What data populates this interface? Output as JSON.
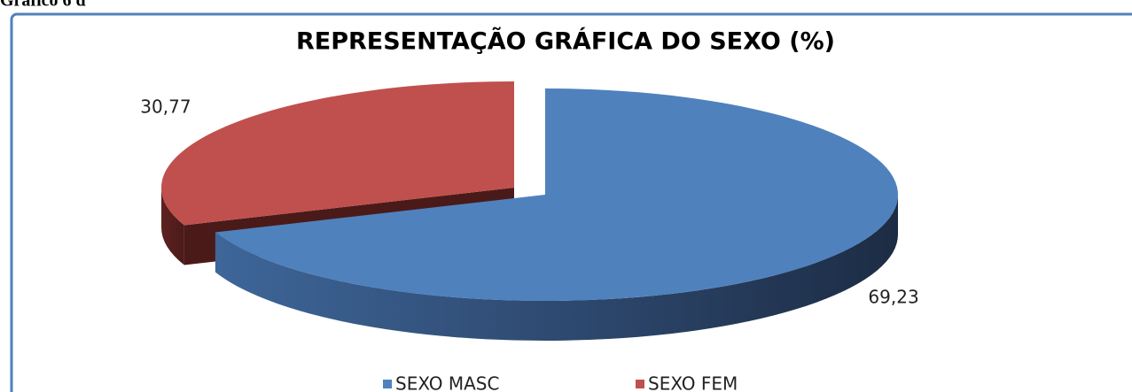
{
  "caption": "Gráfico 6 d",
  "chart_data": {
    "type": "pie",
    "title": "REPRESENTAÇÃO GRÁFICA DO SEXO (%)",
    "categories": [
      "SEXO MASC",
      "SEXO FEM"
    ],
    "values": [
      69.23,
      30.77
    ],
    "value_labels": [
      "69,23",
      "30,77"
    ],
    "colors": [
      "#4f81bd",
      "#c0504d"
    ],
    "legend": "bottom"
  }
}
